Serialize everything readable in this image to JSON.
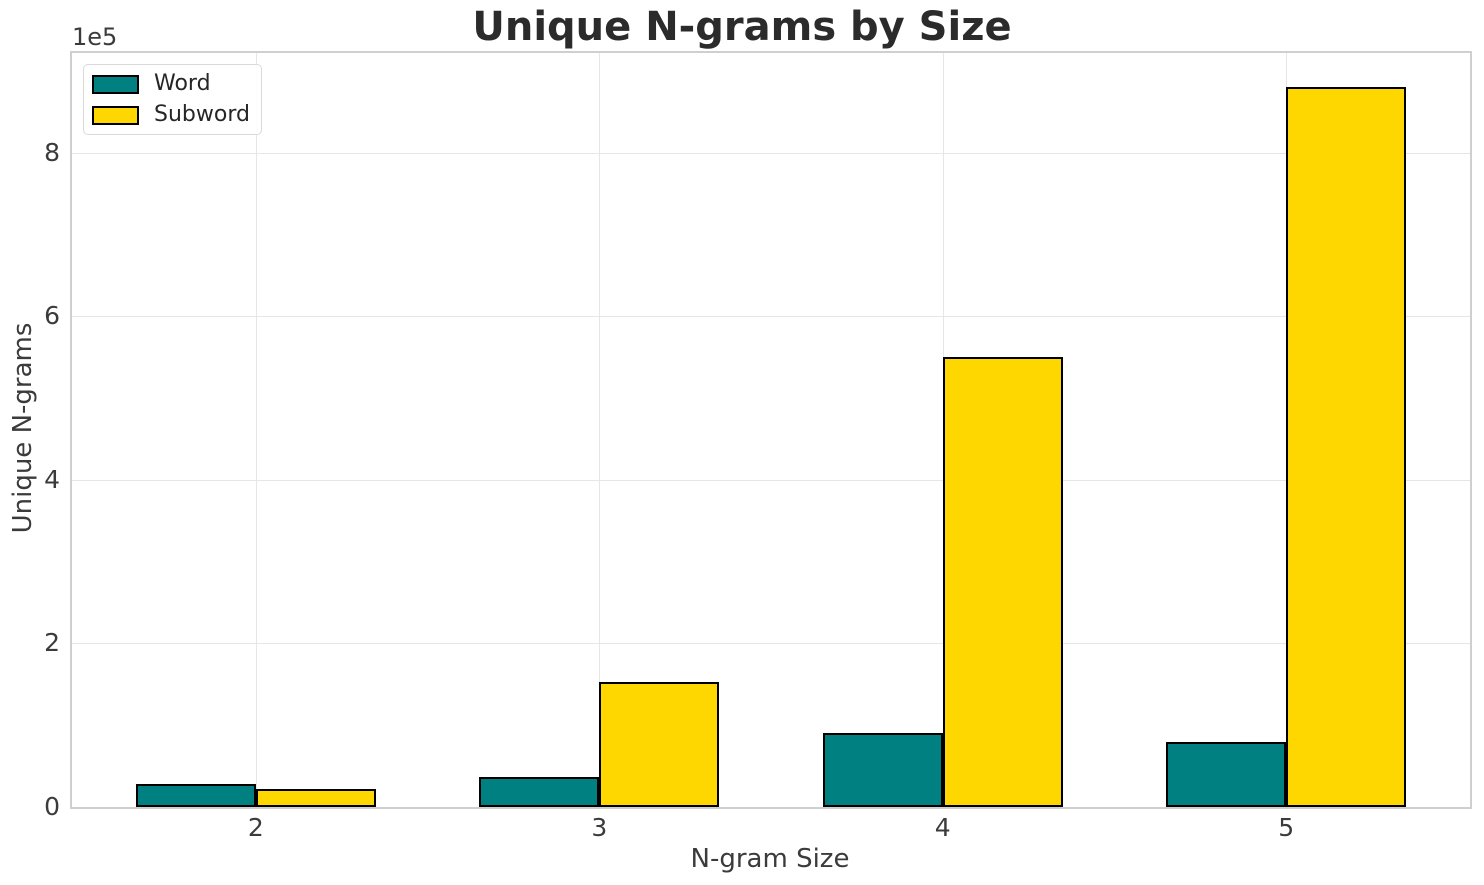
{
  "chart_data": {
    "type": "bar",
    "title": "Unique N-grams by Size",
    "xlabel": "N-gram Size",
    "ylabel": "Unique N-grams",
    "offset_text": "1e5",
    "categories": [
      2,
      3,
      4,
      5
    ],
    "x_tick_labels": [
      "2",
      "3",
      "4",
      "5"
    ],
    "series": [
      {
        "name": "Word",
        "color": "#008080",
        "values": [
          28000,
          37000,
          90000,
          79000
        ]
      },
      {
        "name": "Subword",
        "color": "#FFD700",
        "values": [
          22000,
          153000,
          550000,
          880000
        ]
      }
    ],
    "bar_width_units": 0.35,
    "bar_edge_color": "#000000",
    "xlim": [
      1.465,
      5.535
    ],
    "ylim": [
      0,
      922000
    ],
    "y_ticks": [
      0,
      200000,
      400000,
      600000,
      800000
    ],
    "y_tick_labels": [
      "0",
      "2",
      "4",
      "6",
      "8"
    ],
    "grid": true,
    "legend_position": "upper-left"
  },
  "style": {
    "grid_color": "#e6e6e6",
    "spine_color": "#cfcfcf",
    "title_color": "#2b2b2b",
    "tick_color": "#3b3b3b",
    "legend_border_color": "#d9d9d9",
    "background": "#ffffff"
  }
}
